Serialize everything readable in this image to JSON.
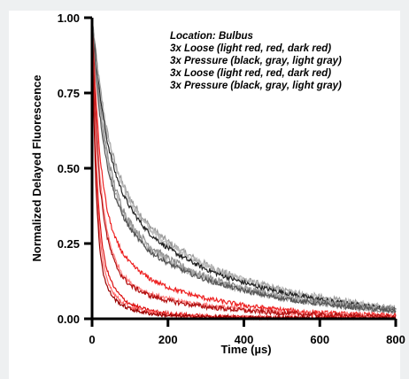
{
  "chart_data": {
    "type": "line",
    "xlabel": "Time (µs)",
    "ylabel": "Normalized Delayed Fluorescence",
    "xlim": [
      0,
      800
    ],
    "ylim": [
      0,
      1.0
    ],
    "x_ticks": [
      "0",
      "200",
      "400",
      "600",
      "800"
    ],
    "y_ticks": [
      "0.00",
      "0.25",
      "0.50",
      "0.75",
      "1.00"
    ],
    "x_tick_values": [
      0,
      200,
      400,
      600,
      800
    ],
    "y_tick_values": [
      0,
      0.25,
      0.5,
      0.75,
      1.0
    ],
    "grid": false,
    "legend_placement": "top-right",
    "annotations": [
      "Location: Bulbus",
      "3x Loose (light red, red, dark red)",
      "3x Pressure (black, gray, light gray)",
      "3x Loose (light red, red, dark red)",
      "3x Pressure (black, gray, light gray)"
    ],
    "series": [
      {
        "color": "#999999",
        "noise": 0.012,
        "x": [
          0,
          20,
          40,
          60,
          80,
          100,
          150,
          200,
          300,
          400,
          500,
          600,
          700,
          800
        ],
        "values": [
          1.0,
          0.78,
          0.62,
          0.52,
          0.45,
          0.4,
          0.31,
          0.255,
          0.18,
          0.13,
          0.095,
          0.07,
          0.05,
          0.035
        ]
      },
      {
        "color": "#bbbbbb",
        "noise": 0.012,
        "x": [
          0,
          20,
          40,
          60,
          80,
          100,
          150,
          200,
          300,
          400,
          500,
          600,
          700,
          800
        ],
        "values": [
          1.0,
          0.77,
          0.61,
          0.51,
          0.44,
          0.39,
          0.3,
          0.25,
          0.175,
          0.127,
          0.093,
          0.068,
          0.05,
          0.036
        ]
      },
      {
        "color": "#222222",
        "noise": 0.008,
        "x": [
          0,
          20,
          40,
          60,
          80,
          100,
          150,
          200,
          300,
          400,
          500,
          600,
          700,
          800
        ],
        "values": [
          1.0,
          0.75,
          0.59,
          0.49,
          0.42,
          0.37,
          0.285,
          0.235,
          0.165,
          0.12,
          0.088,
          0.064,
          0.046,
          0.032
        ]
      },
      {
        "color": "#8a8a8a",
        "noise": 0.012,
        "x": [
          0,
          20,
          40,
          60,
          80,
          100,
          150,
          200,
          300,
          400,
          500,
          600,
          700,
          800
        ],
        "values": [
          1.0,
          0.72,
          0.55,
          0.44,
          0.37,
          0.32,
          0.245,
          0.2,
          0.14,
          0.1,
          0.074,
          0.055,
          0.04,
          0.028
        ]
      },
      {
        "color": "#aaaaaa",
        "noise": 0.012,
        "x": [
          0,
          20,
          40,
          60,
          80,
          100,
          150,
          200,
          300,
          400,
          500,
          600,
          700,
          800
        ],
        "values": [
          1.0,
          0.7,
          0.53,
          0.42,
          0.355,
          0.31,
          0.235,
          0.19,
          0.135,
          0.097,
          0.071,
          0.053,
          0.039,
          0.027
        ]
      },
      {
        "color": "#555555",
        "noise": 0.008,
        "x": [
          0,
          20,
          40,
          60,
          80,
          100,
          150,
          200,
          300,
          400,
          500,
          600,
          700,
          800
        ],
        "values": [
          1.0,
          0.68,
          0.51,
          0.41,
          0.345,
          0.3,
          0.225,
          0.185,
          0.13,
          0.094,
          0.068,
          0.05,
          0.037,
          0.026
        ]
      },
      {
        "color": "#ee2222",
        "noise": 0.008,
        "x": [
          0,
          20,
          40,
          60,
          80,
          100,
          150,
          200,
          300,
          400,
          500,
          600,
          700,
          800
        ],
        "values": [
          1.0,
          0.55,
          0.36,
          0.27,
          0.22,
          0.185,
          0.135,
          0.105,
          0.068,
          0.045,
          0.03,
          0.02,
          0.014,
          0.01
        ]
      },
      {
        "color": "#ff8080",
        "noise": 0.008,
        "x": [
          0,
          20,
          40,
          60,
          80,
          100,
          150,
          200,
          300,
          400,
          500,
          600,
          700,
          800
        ],
        "values": [
          1.0,
          0.48,
          0.29,
          0.2,
          0.15,
          0.12,
          0.085,
          0.066,
          0.045,
          0.031,
          0.021,
          0.015,
          0.011,
          0.008
        ]
      },
      {
        "color": "#b01010",
        "noise": 0.008,
        "x": [
          0,
          20,
          40,
          60,
          80,
          100,
          150,
          200,
          300,
          400,
          500,
          600,
          700,
          800
        ],
        "values": [
          1.0,
          0.45,
          0.27,
          0.185,
          0.14,
          0.112,
          0.078,
          0.06,
          0.04,
          0.028,
          0.019,
          0.013,
          0.009,
          0.006
        ]
      },
      {
        "color": "#dd1111",
        "noise": 0.006,
        "x": [
          0,
          10,
          20,
          30,
          40,
          60,
          80,
          100,
          150,
          200,
          300,
          400,
          500,
          600,
          700,
          800
        ],
        "values": [
          1.0,
          0.55,
          0.33,
          0.22,
          0.16,
          0.1,
          0.07,
          0.05,
          0.028,
          0.018,
          0.009,
          0.006,
          0.004,
          0.003,
          0.002,
          0.002
        ]
      },
      {
        "color": "#ff6666",
        "noise": 0.006,
        "x": [
          0,
          10,
          20,
          30,
          40,
          60,
          80,
          100,
          150,
          200,
          300,
          400,
          500,
          600,
          700,
          800
        ],
        "values": [
          1.0,
          0.5,
          0.28,
          0.18,
          0.13,
          0.08,
          0.055,
          0.04,
          0.022,
          0.014,
          0.007,
          0.005,
          0.003,
          0.002,
          0.002,
          0.001
        ]
      },
      {
        "color": "#990000",
        "noise": 0.006,
        "x": [
          0,
          10,
          20,
          30,
          40,
          60,
          80,
          100,
          150,
          200,
          300,
          400,
          500,
          600,
          700,
          800
        ],
        "values": [
          1.0,
          0.45,
          0.24,
          0.15,
          0.105,
          0.065,
          0.045,
          0.033,
          0.018,
          0.011,
          0.006,
          0.004,
          0.003,
          0.002,
          0.001,
          0.001
        ]
      }
    ]
  }
}
